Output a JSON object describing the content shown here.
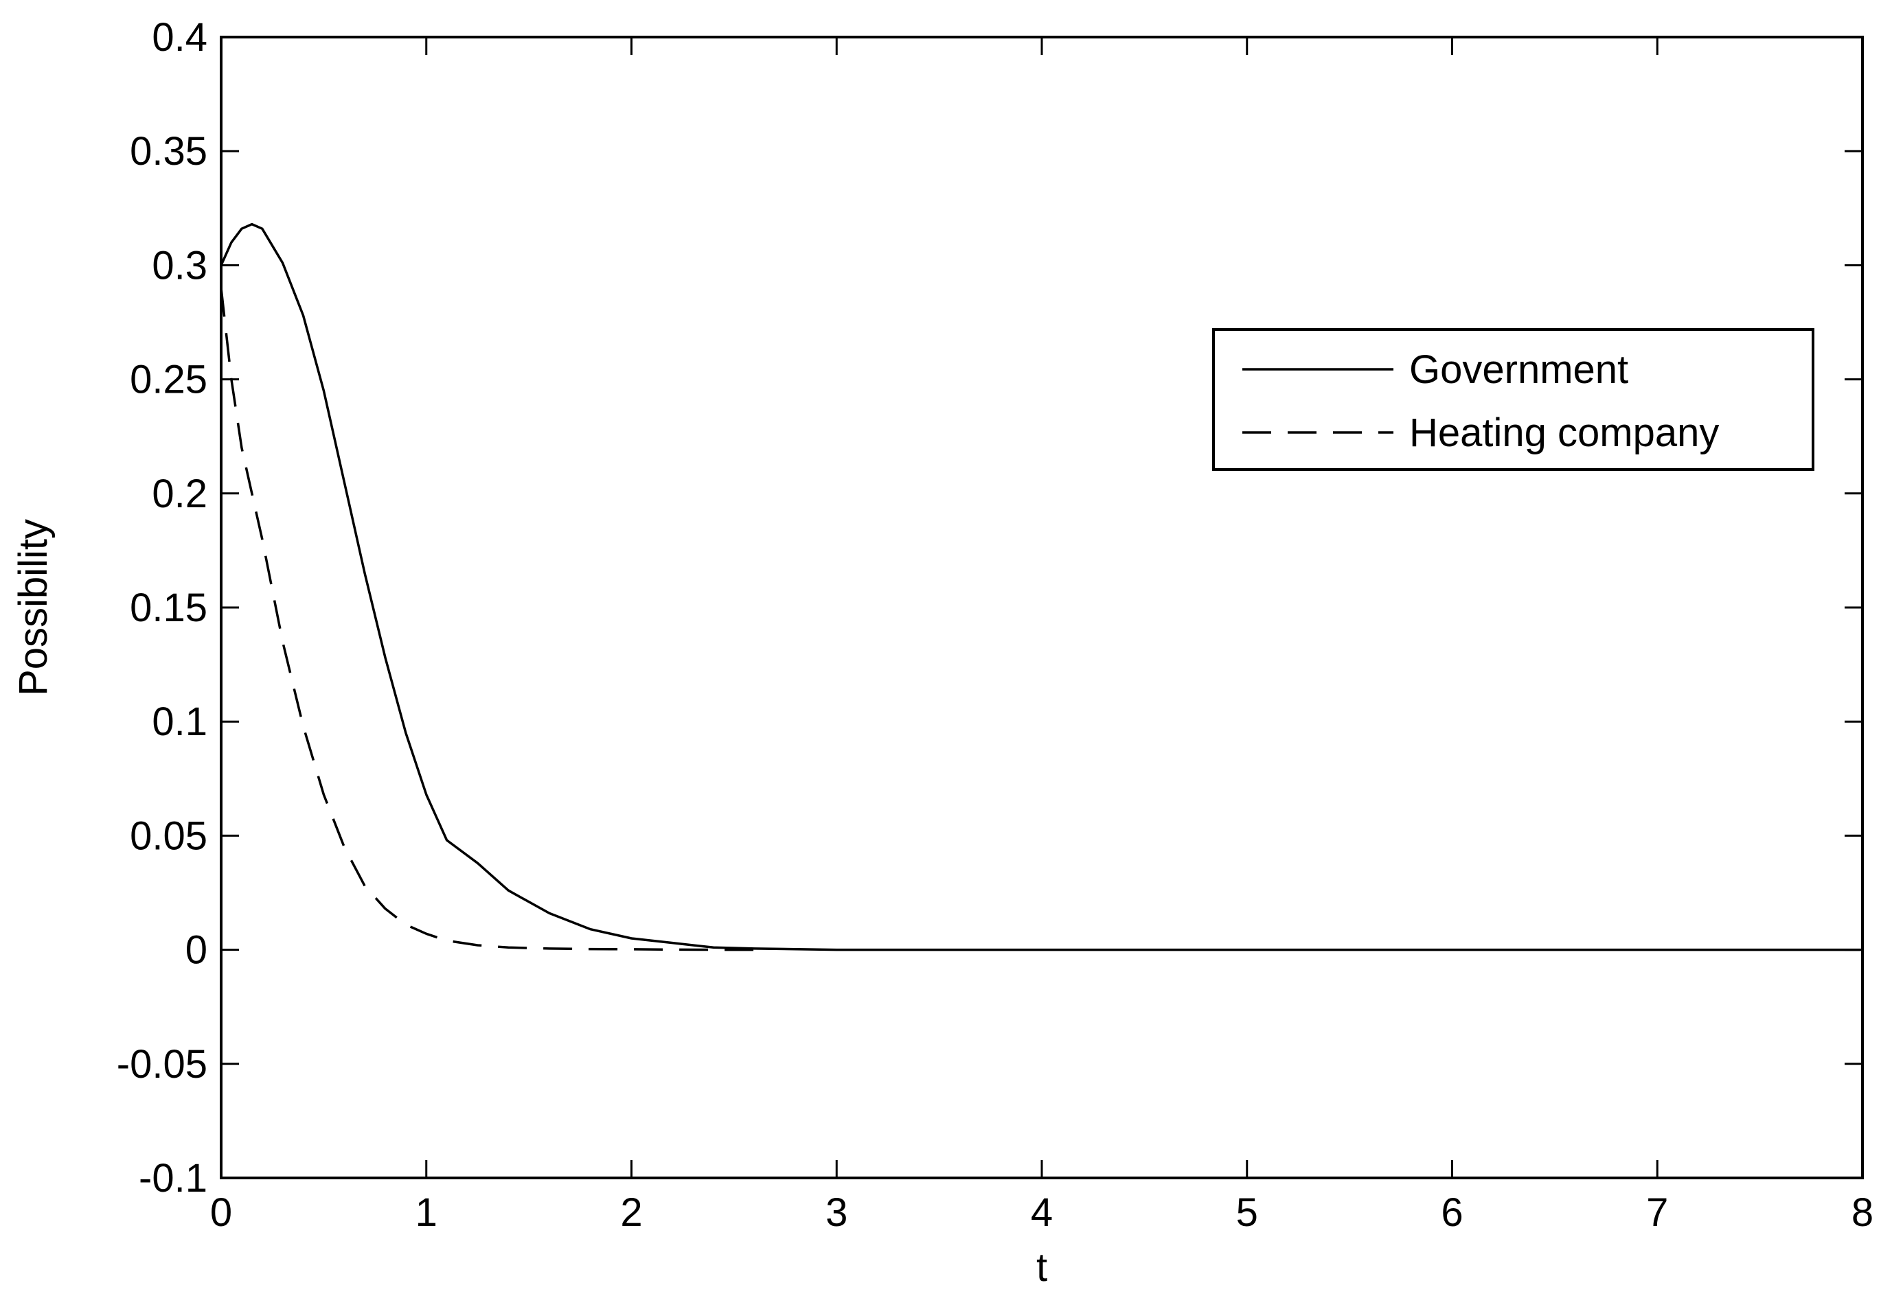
{
  "chart_data": {
    "type": "line",
    "title": "",
    "xlabel": "t",
    "ylabel": "Possibility",
    "xlim": [
      0,
      8
    ],
    "ylim": [
      -0.1,
      0.4
    ],
    "xticks": [
      0,
      1,
      2,
      3,
      4,
      5,
      6,
      7,
      8
    ],
    "yticks": [
      -0.1,
      -0.05,
      0,
      0.05,
      0.1,
      0.15,
      0.2,
      0.25,
      0.3,
      0.35,
      0.4
    ],
    "xtick_labels": [
      "0",
      "1",
      "2",
      "3",
      "4",
      "5",
      "6",
      "7",
      "8"
    ],
    "ytick_labels": [
      "-0.1",
      "-0.05",
      "0",
      "0.05",
      "0.1",
      "0.15",
      "0.2",
      "0.25",
      "0.3",
      "0.35",
      "0.4"
    ],
    "grid": false,
    "legend_position": "top-right",
    "series": [
      {
        "name": "Government",
        "style": "solid",
        "color": "#000000",
        "x": [
          0,
          0.05,
          0.1,
          0.15,
          0.2,
          0.3,
          0.4,
          0.5,
          0.6,
          0.7,
          0.8,
          0.9,
          1.0,
          1.1,
          1.25,
          1.4,
          1.6,
          1.8,
          2.0,
          2.2,
          2.4,
          2.6,
          3.0,
          4.0,
          5.0,
          6.0,
          7.0,
          8.0
        ],
        "y": [
          0.3,
          0.31,
          0.316,
          0.318,
          0.316,
          0.301,
          0.278,
          0.245,
          0.205,
          0.165,
          0.128,
          0.095,
          0.068,
          0.048,
          0.038,
          0.026,
          0.016,
          0.009,
          0.005,
          0.003,
          0.001,
          0.0005,
          0,
          0,
          0,
          0,
          0,
          0
        ]
      },
      {
        "name": "Heating company",
        "style": "dashed",
        "color": "#000000",
        "x": [
          0,
          0.05,
          0.1,
          0.15,
          0.2,
          0.3,
          0.4,
          0.5,
          0.6,
          0.7,
          0.8,
          0.9,
          1.0,
          1.1,
          1.25,
          1.4,
          1.6,
          1.8,
          2.0,
          2.2,
          2.4,
          2.6
        ],
        "y": [
          0.29,
          0.25,
          0.22,
          0.2,
          0.18,
          0.135,
          0.098,
          0.068,
          0.045,
          0.028,
          0.018,
          0.011,
          0.007,
          0.004,
          0.002,
          0.001,
          0.0005,
          0.0003,
          0.0002,
          0.0001,
          0,
          0
        ]
      }
    ]
  }
}
